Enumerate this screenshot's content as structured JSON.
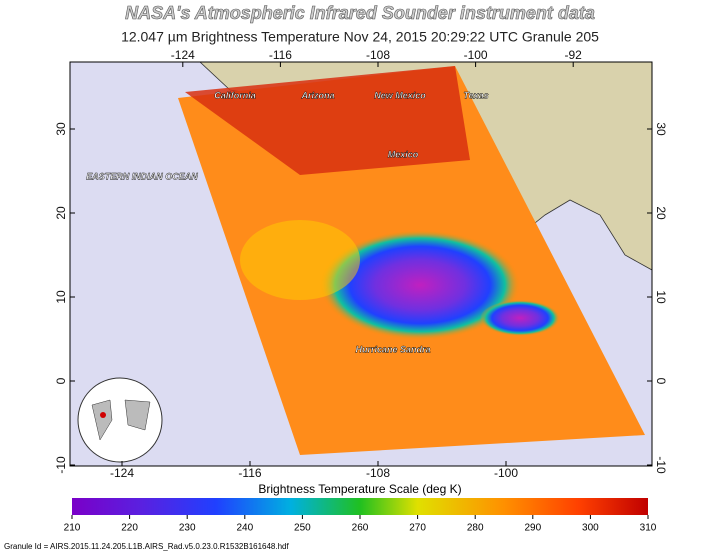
{
  "header": {
    "title": "NASA's Atmospheric Infrared Sounder instrument data",
    "subtitle": "12.047 µm Brightness Temperature    Nov 24, 2015 20:29:22 UTC    Granule 205"
  },
  "lon_ticks_top": [
    -124,
    -116,
    -108,
    -100,
    -92
  ],
  "lon_ticks_bottom": [
    -124,
    -116,
    -108,
    -100
  ],
  "lat_ticks": [
    30,
    20,
    10,
    0,
    -10
  ],
  "places": [
    "California",
    "Arizona",
    "New Mexico",
    "Texas",
    "Mexico",
    "EASTERN INDIAN OCEAN",
    "Hurricane Sandra"
  ],
  "colorbar": {
    "title": "Brightness Temperature Scale (deg K)",
    "ticks": [
      210,
      220,
      230,
      240,
      250,
      260,
      270,
      280,
      290,
      300,
      310
    ]
  },
  "footer": "Granule Id = AIRS.2015.11.24.205.L1B.AIRS_Rad.v5.0.23.0.R1532B161648.hdf"
}
